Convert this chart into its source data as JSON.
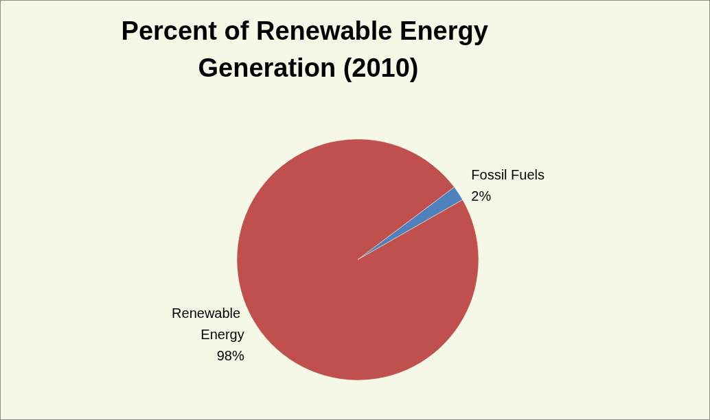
{
  "chart_data": {
    "type": "pie",
    "title": "Percent of Renewable Energy Generation (2010)",
    "categories": [
      "Fossil Fuels",
      "Renewable Energy"
    ],
    "values": [
      2,
      98
    ],
    "value_labels": [
      "2%",
      "98%"
    ],
    "colors": [
      "#4f81bd",
      "#c0504d"
    ],
    "legend": false
  }
}
